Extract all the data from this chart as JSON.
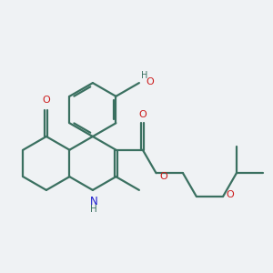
{
  "bg_color": "#eff2f4",
  "bond_color": "#3a7060",
  "N_color": "#1a1acc",
  "O_color": "#cc1a1a",
  "line_width": 1.6,
  "figsize": [
    3.0,
    3.0
  ],
  "dpi": 100,
  "xlim": [
    -2.5,
    7.5
  ],
  "ylim": [
    -3.5,
    5.5
  ]
}
